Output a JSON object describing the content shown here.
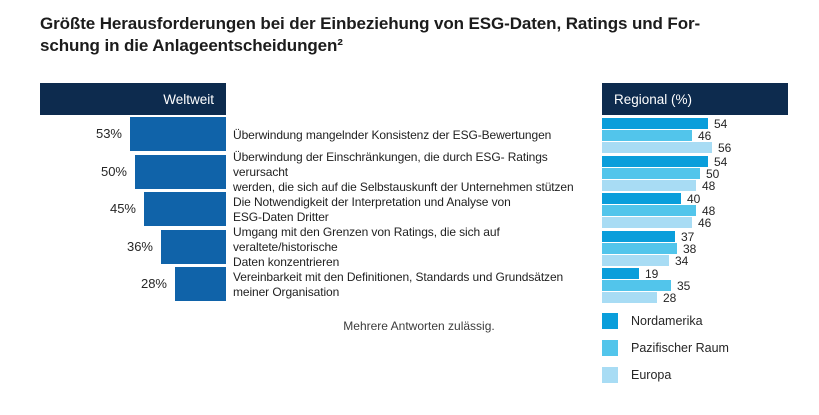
{
  "title": {
    "line1": "Größte Herausforderungen bei der Einbeziehung von ESG-Daten, Ratings und For-",
    "line2": "schung in die Anlageentscheidungen²"
  },
  "panels": {
    "weltweit_header": "Weltweit",
    "regional_header": "Regional (%)"
  },
  "footnote": "Mehrere Antworten zulässig.",
  "colors": {
    "header_navy": "#0d2b4e",
    "weltweit_bar": "#1063a9",
    "nordamerika": "#0a9edb",
    "pazifischer_raum": "#52c5eb",
    "europa": "#a8dcf4",
    "title_text": "#1c1c1c"
  },
  "legend": [
    {
      "label": "Nordamerika",
      "color": "#0a9edb"
    },
    {
      "label": "Pazifischer Raum",
      "color": "#52c5eb"
    },
    {
      "label": "Europa",
      "color": "#a8dcf4"
    }
  ],
  "chart_data": {
    "type": "bar",
    "title": "Größte Herausforderungen bei der Einbeziehung von ESG-Daten, Ratings und Forschung in die Anlageentscheidungen²",
    "note": "Mehrere Antworten zulässig.",
    "legend_position": "bottom-right",
    "categories": [
      "Überwindung mangelnder Konsistenz der ESG-Bewertungen",
      "Überwindung der Einschränkungen, die durch ESG- Ratings verursacht werden, die sich auf die Selbstauskunft der Unternehmen stützen",
      "Die Notwendigkeit der Interpretation und Analyse von ESG-Daten Dritter",
      "Umgang mit den Grenzen von Ratings, die sich auf veraltete/historische Daten konzentrieren",
      "Vereinbarkeit mit den Definitionen, Standards und Grundsätzen meiner Organisation"
    ],
    "categories_lines": [
      [
        "Überwindung mangelnder Konsistenz der ESG-Bewertungen"
      ],
      [
        "Überwindung der Einschränkungen, die durch ESG- Ratings verursacht",
        "werden, die sich auf die Selbstauskunft der Unternehmen stützen"
      ],
      [
        "Die Notwendigkeit der Interpretation und Analyse von",
        "ESG-Daten Dritter"
      ],
      [
        "Umgang mit den Grenzen von Ratings, die sich auf veraltete/historische",
        "Daten konzentrieren"
      ],
      [
        "Vereinbarkeit mit den Definitionen, Standards und Grundsätzen",
        "meiner Organisation"
      ]
    ],
    "weltweit": {
      "label": "Weltweit",
      "unit": "%",
      "values": [
        53,
        50,
        45,
        36,
        28
      ]
    },
    "regional": {
      "label": "Regional (%)",
      "series": [
        {
          "name": "Nordamerika",
          "values": [
            54,
            54,
            40,
            37,
            19
          ]
        },
        {
          "name": "Pazifischer Raum",
          "values": [
            46,
            50,
            48,
            38,
            35
          ]
        },
        {
          "name": "Europa",
          "values": [
            56,
            48,
            46,
            34,
            28
          ]
        }
      ]
    }
  }
}
